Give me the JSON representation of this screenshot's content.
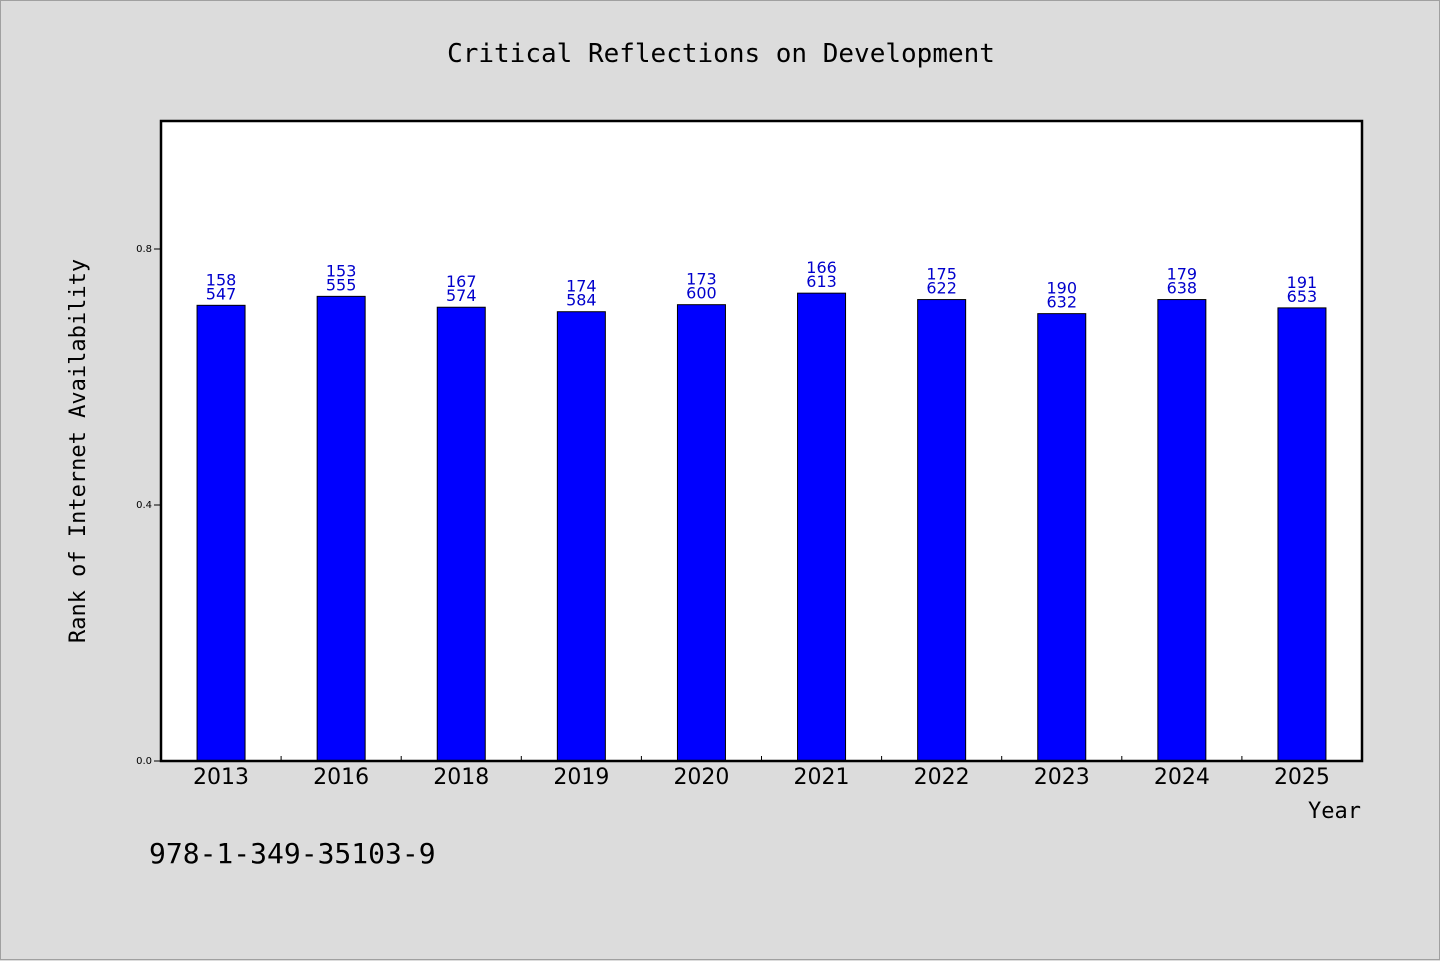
{
  "chart_data": {
    "type": "bar",
    "title": "Critical Reflections on Development",
    "xlabel": "Year",
    "ylabel": "Rank of Internet Availability",
    "categories": [
      "2013",
      "2016",
      "2018",
      "2019",
      "2020",
      "2021",
      "2022",
      "2023",
      "2024",
      "2025"
    ],
    "series": [
      {
        "values": [
          0.712,
          0.726,
          0.709,
          0.702,
          0.713,
          0.731,
          0.721,
          0.699,
          0.721,
          0.708
        ],
        "color": "#0000ff",
        "labels_top": [
          "158",
          "153",
          "167",
          "174",
          "173",
          "166",
          "175",
          "190",
          "179",
          "191"
        ],
        "labels_bottom": [
          "547",
          "555",
          "574",
          "584",
          "600",
          "613",
          "622",
          "632",
          "638",
          "653"
        ]
      }
    ],
    "ylim": [
      0,
      1.0
    ],
    "yticks": [
      "0.0",
      "0.4",
      "0.8"
    ],
    "ytick_values": [
      0.0,
      0.4,
      0.8
    ],
    "grid": false,
    "legend": "none"
  },
  "footer": {
    "isbn": "978-1-349-35103-9"
  },
  "colors": {
    "background": "#dcdcdc",
    "plot_background": "#ffffff",
    "bar": "#0000ff",
    "data_label": "#0000cc"
  }
}
